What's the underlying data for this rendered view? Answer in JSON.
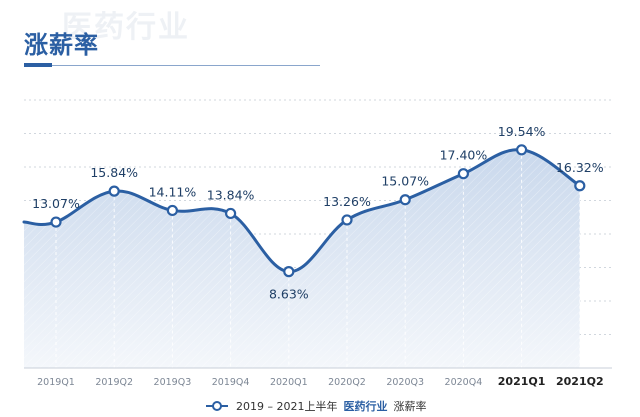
{
  "header": {
    "title": "涨薪率",
    "watermark": "医药行业"
  },
  "legend": {
    "period": "2019 – 2021上半年",
    "industry": "医药行业",
    "metric": "涨薪率"
  },
  "colors": {
    "accent": "#2b5fa3",
    "fill_top": "#c9d8ec",
    "fill_bottom": "#f4f7fb",
    "grid": "#9aa7b8"
  },
  "chart_data": {
    "type": "area",
    "title": "涨薪率",
    "categories": [
      "2019Q1",
      "2019Q2",
      "2019Q3",
      "2019Q4",
      "2020Q1",
      "2020Q2",
      "2020Q3",
      "2020Q4",
      "2021Q1",
      "2021Q2"
    ],
    "series": [
      {
        "name": "医药行业 涨薪率",
        "values": [
          13.07,
          15.84,
          14.11,
          13.84,
          8.63,
          13.26,
          15.07,
          17.4,
          19.54,
          16.32
        ],
        "labels": [
          "13.07%",
          "15.84%",
          "14.11%",
          "13.84%",
          "8.63%",
          "13.26%",
          "15.07%",
          "17.40%",
          "19.54%",
          "16.32%"
        ]
      }
    ],
    "bold_categories": [
      "2021Q1",
      "2021Q2"
    ],
    "label_below": [
      "2020Q1"
    ],
    "xlabel": "",
    "ylabel": "",
    "ylim": [
      0,
      24
    ],
    "grid": true,
    "legend_position": "bottom"
  }
}
